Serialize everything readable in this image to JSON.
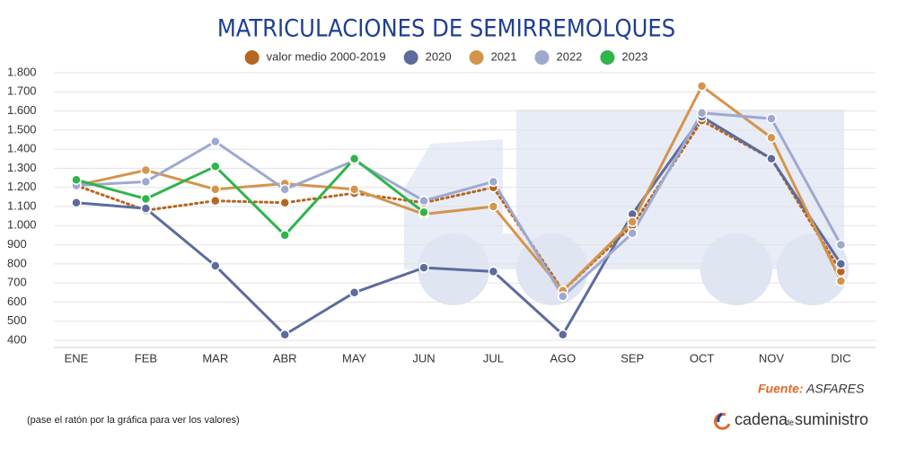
{
  "chart_data": {
    "type": "line",
    "title": "MATRICULACIONES DE SEMIRREMOLQUES",
    "categories": [
      "ENE",
      "FEB",
      "MAR",
      "ABR",
      "MAY",
      "JUN",
      "JUL",
      "AGO",
      "SEP",
      "OCT",
      "NOV",
      "DIC"
    ],
    "series": [
      {
        "name": "valor medio 2000-2019",
        "color": "#b5661f",
        "dash": "dotted",
        "values": [
          1210,
          1080,
          1130,
          1120,
          1170,
          1120,
          1200,
          660,
          1000,
          1550,
          1350,
          760
        ]
      },
      {
        "name": "2020",
        "color": "#5d6b9c",
        "values": [
          1120,
          1090,
          790,
          430,
          650,
          780,
          760,
          430,
          1060,
          1570,
          1350,
          800
        ]
      },
      {
        "name": "2021",
        "color": "#d3954c",
        "values": [
          1210,
          1290,
          1190,
          1220,
          1190,
          1060,
          1100,
          660,
          1020,
          1730,
          1460,
          710
        ]
      },
      {
        "name": "2022",
        "color": "#9ea9d0",
        "values": [
          1210,
          1230,
          1440,
          1190,
          1340,
          1130,
          1230,
          630,
          960,
          1590,
          1560,
          900
        ]
      },
      {
        "name": "2023",
        "color": "#2fb54a",
        "values": [
          1240,
          1140,
          1310,
          950,
          1350,
          1070,
          null,
          null,
          null,
          null,
          null,
          null
        ]
      }
    ],
    "ylim": [
      400,
      1800
    ],
    "yticks": [
      {
        "value": 400,
        "label": "400"
      },
      {
        "value": 500,
        "label": "500"
      },
      {
        "value": 600,
        "label": "600"
      },
      {
        "value": 700,
        "label": "700"
      },
      {
        "value": 800,
        "label": "800"
      },
      {
        "value": 900,
        "label": "900"
      },
      {
        "value": 1000,
        "label": "1.000"
      },
      {
        "value": 1100,
        "label": "1.100"
      },
      {
        "value": 1200,
        "label": "1.200"
      },
      {
        "value": 1300,
        "label": "1.300"
      },
      {
        "value": 1400,
        "label": "1.400"
      },
      {
        "value": 1500,
        "label": "1.500"
      },
      {
        "value": 1600,
        "label": "1.600"
      },
      {
        "value": 1700,
        "label": "1.700"
      },
      {
        "value": 1800,
        "label": "1.800"
      }
    ],
    "grid": true,
    "legend": "top",
    "source": {
      "label": "Fuente:",
      "name": "ASFARES"
    },
    "note": "(pase el ratón por la gráfica para ver los valores)",
    "logo": [
      "cadena",
      "de",
      "suministro"
    ]
  }
}
